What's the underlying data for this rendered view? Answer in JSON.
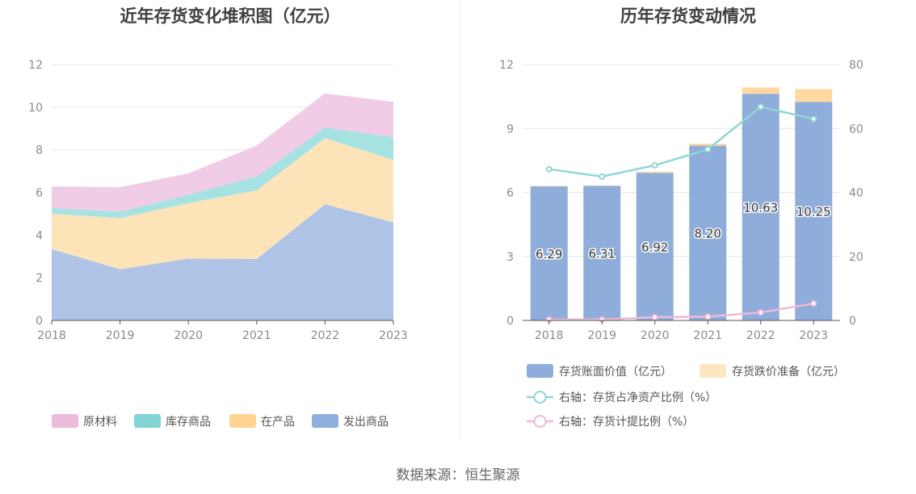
{
  "titles": {
    "left": "近年存货变化堆积图（亿元）",
    "right": "历年存货变动情况"
  },
  "source": "数据来源：恒生聚源",
  "chart_data": [
    {
      "type": "area",
      "stacked": true,
      "title": "近年存货变化堆积图（亿元）",
      "x": [
        "2018",
        "2019",
        "2020",
        "2021",
        "2022",
        "2023"
      ],
      "ylim": [
        0,
        12
      ],
      "yticks": [
        0,
        2,
        4,
        6,
        8,
        10,
        12
      ],
      "grid": true,
      "legend": "bottom",
      "series": [
        {
          "name": "发出商品",
          "color": "#aec3e6",
          "legend_color": "#8fb0de",
          "values": [
            3.35,
            2.4,
            2.9,
            2.88,
            5.45,
            4.6
          ]
        },
        {
          "name": "在产品",
          "color": "#fde4b8",
          "legend_color": "#fdd493",
          "values": [
            1.65,
            2.4,
            2.6,
            3.22,
            3.1,
            2.93
          ]
        },
        {
          "name": "库存商品",
          "color": "#a7e2e2",
          "legend_color": "#83d4d4",
          "values": [
            0.27,
            0.3,
            0.4,
            0.65,
            0.5,
            1.07
          ]
        },
        {
          "name": "原材料",
          "color": "#f1cce6",
          "legend_color": "#ecbadb",
          "values": [
            1.02,
            1.15,
            1.0,
            1.45,
            1.6,
            1.65
          ]
        }
      ],
      "legend_order": [
        "原材料",
        "库存商品",
        "在产品",
        "发出商品"
      ]
    },
    {
      "type": "bar",
      "stacked": true,
      "title": "历年存货变动情况",
      "categories": [
        "2018",
        "2019",
        "2020",
        "2021",
        "2022",
        "2023"
      ],
      "ylim": [
        0,
        12
      ],
      "yticks": [
        0,
        3,
        6,
        9,
        12
      ],
      "y2lim": [
        0,
        80
      ],
      "y2ticks": [
        0,
        20,
        40,
        60,
        80
      ],
      "grid": true,
      "legend": "bottom",
      "series": [
        {
          "name": "存货账面价值（亿元）",
          "kind": "bar",
          "color": "#8fadda",
          "values": [
            6.29,
            6.31,
            6.92,
            8.2,
            10.63,
            10.25
          ],
          "labels": [
            "6.29",
            "6.31",
            "6.92",
            "8.20",
            "10.63",
            "10.25"
          ]
        },
        {
          "name": "存货跌价准备（亿元）",
          "kind": "bar",
          "color": "#fdd9a0",
          "legend_color": "#fde6c2",
          "values": [
            0.02,
            0.02,
            0.06,
            0.09,
            0.3,
            0.6
          ]
        },
        {
          "name": "右轴：存货占净资产比例（%）",
          "kind": "line",
          "axis": "right",
          "color": "#8fd6d6",
          "values": [
            47.3,
            45.0,
            48.5,
            53.5,
            66.8,
            63.0
          ]
        },
        {
          "name": "右轴：存货计提比例（%）",
          "kind": "line",
          "axis": "right",
          "color": "#eeb9d9",
          "values": [
            0.3,
            0.3,
            1.0,
            1.2,
            2.5,
            5.3
          ]
        }
      ]
    }
  ]
}
